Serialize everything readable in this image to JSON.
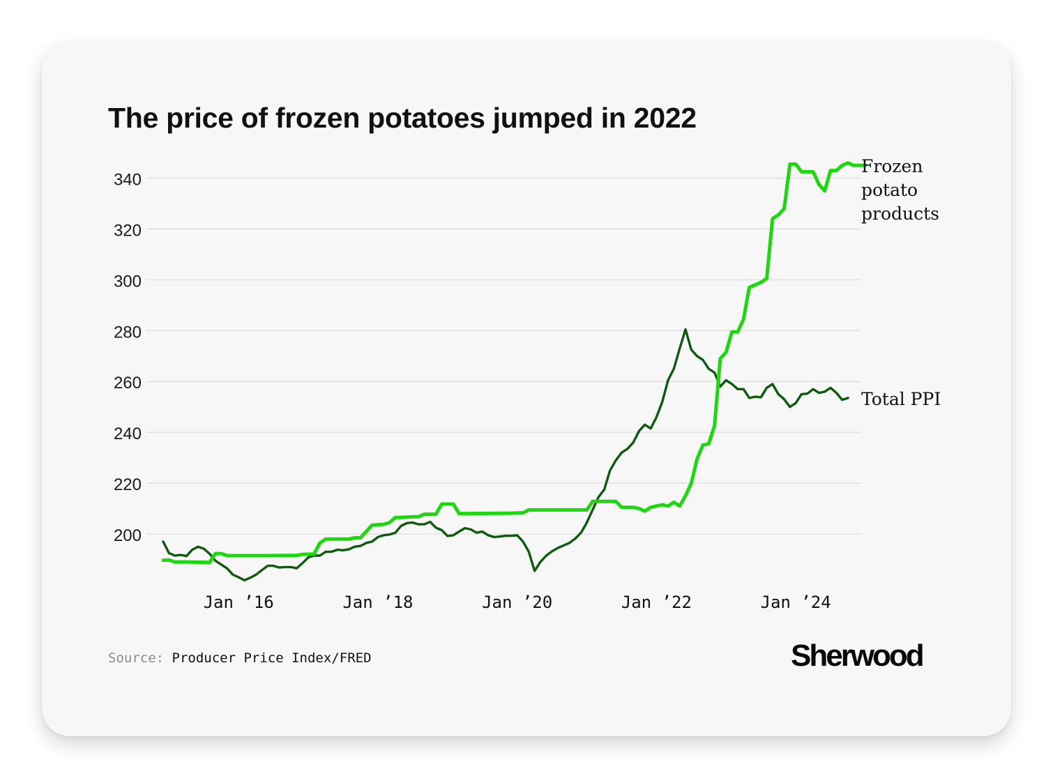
{
  "title": "The price of frozen potatoes jumped in 2022",
  "source": {
    "label": "Source:",
    "text": "Producer Price Index/FRED"
  },
  "brand": "Sherwood",
  "colors": {
    "frozen": "#1ed80e",
    "total": "#0d5a0d",
    "grid": "#e0e0e0",
    "card": "#f7f7f7"
  },
  "chart_data": {
    "type": "line",
    "title": "The price of frozen potatoes jumped in 2022",
    "xlabel": "",
    "ylabel": "",
    "ylim": [
      180,
      346
    ],
    "xlim": [
      "2014-12",
      "2024-10"
    ],
    "y_ticks": [
      200,
      220,
      240,
      260,
      280,
      300,
      320,
      340
    ],
    "y_tick_labels": [
      "200",
      "220",
      "240",
      "260",
      "280",
      "300",
      "320",
      "340"
    ],
    "x_ticks": [
      "2016-01",
      "2018-01",
      "2020-01",
      "2022-01",
      "2024-01"
    ],
    "x_tick_labels": [
      "Jan ’16",
      "Jan ’18",
      "Jan ’20",
      "Jan ’22",
      "Jan ’24"
    ],
    "grid": "horizontal",
    "series": [
      {
        "name": "Frozen potato products",
        "color": "#1ed80e",
        "label_lines": [
          "Frozen",
          "potato",
          "products"
        ],
        "points": [
          [
            "2014-12",
            189.7
          ],
          [
            "2015-01",
            189.8
          ],
          [
            "2015-02",
            189.0
          ],
          [
            "2015-04",
            189.0
          ],
          [
            "2015-08",
            188.8
          ],
          [
            "2015-09",
            192.3
          ],
          [
            "2015-10",
            192.3
          ],
          [
            "2015-11",
            191.5
          ],
          [
            "2016-06",
            191.5
          ],
          [
            "2016-11",
            191.6
          ],
          [
            "2016-12",
            192.0
          ],
          [
            "2017-02",
            192.1
          ],
          [
            "2017-03",
            196.5
          ],
          [
            "2017-04",
            198.0
          ],
          [
            "2017-08",
            198.0
          ],
          [
            "2017-09",
            198.5
          ],
          [
            "2017-10",
            198.5
          ],
          [
            "2017-11",
            201.0
          ],
          [
            "2017-12",
            203.5
          ],
          [
            "2018-02",
            203.8
          ],
          [
            "2018-03",
            204.5
          ],
          [
            "2018-04",
            206.5
          ],
          [
            "2018-05",
            206.5
          ],
          [
            "2018-07",
            206.8
          ],
          [
            "2018-08",
            206.8
          ],
          [
            "2018-09",
            207.8
          ],
          [
            "2018-11",
            207.8
          ],
          [
            "2018-12",
            211.8
          ],
          [
            "2019-02",
            211.8
          ],
          [
            "2019-03",
            208.0
          ],
          [
            "2019-12",
            208.2
          ],
          [
            "2020-01",
            208.3
          ],
          [
            "2020-02",
            208.3
          ],
          [
            "2020-03",
            209.5
          ],
          [
            "2021-01",
            209.5
          ],
          [
            "2021-02",
            212.8
          ],
          [
            "2021-06",
            212.8
          ],
          [
            "2021-07",
            210.5
          ],
          [
            "2021-09",
            210.5
          ],
          [
            "2021-10",
            210.0
          ],
          [
            "2021-11",
            209.0
          ],
          [
            "2021-12",
            210.5
          ],
          [
            "2022-02",
            211.5
          ],
          [
            "2022-03",
            211.0
          ],
          [
            "2022-04",
            212.5
          ],
          [
            "2022-05",
            211.0
          ],
          [
            "2022-06",
            215.0
          ],
          [
            "2022-07",
            220.0
          ],
          [
            "2022-08",
            229.5
          ],
          [
            "2022-09",
            235.0
          ],
          [
            "2022-10",
            235.5
          ],
          [
            "2022-11",
            242.5
          ],
          [
            "2022-12",
            269.0
          ],
          [
            "2023-01",
            271.5
          ],
          [
            "2023-02",
            279.5
          ],
          [
            "2023-03",
            279.5
          ],
          [
            "2023-04",
            284.5
          ],
          [
            "2023-05",
            297.0
          ],
          [
            "2023-06",
            298.0
          ],
          [
            "2023-07",
            299.0
          ],
          [
            "2023-08",
            300.5
          ],
          [
            "2023-09",
            324.0
          ],
          [
            "2023-10",
            325.5
          ],
          [
            "2023-11",
            328.0
          ],
          [
            "2023-12",
            345.5
          ],
          [
            "2024-01",
            345.5
          ],
          [
            "2024-02",
            342.5
          ],
          [
            "2024-04",
            342.5
          ],
          [
            "2024-05",
            337.5
          ],
          [
            "2024-06",
            335.0
          ],
          [
            "2024-07",
            343.0
          ],
          [
            "2024-08",
            343.0
          ],
          [
            "2024-09",
            345.0
          ],
          [
            "2024-10",
            346.0
          ],
          [
            "2024-11",
            345.0
          ],
          [
            "2025-01",
            345.0
          ]
        ]
      },
      {
        "name": "Total PPI",
        "color": "#0d5a0d",
        "label_lines": [
          "Total PPI"
        ],
        "points": [
          [
            "2014-12",
            197.0
          ],
          [
            "2015-01",
            192.5
          ],
          [
            "2015-02",
            191.5
          ],
          [
            "2015-03",
            191.8
          ],
          [
            "2015-04",
            191.3
          ],
          [
            "2015-05",
            193.8
          ],
          [
            "2015-06",
            195.0
          ],
          [
            "2015-07",
            194.2
          ],
          [
            "2015-08",
            192.2
          ],
          [
            "2015-09",
            189.5
          ],
          [
            "2015-10",
            188.0
          ],
          [
            "2015-11",
            186.5
          ],
          [
            "2015-12",
            184.0
          ],
          [
            "2016-01",
            183.0
          ],
          [
            "2016-02",
            181.8
          ],
          [
            "2016-03",
            182.8
          ],
          [
            "2016-04",
            184.0
          ],
          [
            "2016-05",
            185.8
          ],
          [
            "2016-06",
            187.5
          ],
          [
            "2016-07",
            187.5
          ],
          [
            "2016-08",
            186.8
          ],
          [
            "2016-09",
            187.0
          ],
          [
            "2016-10",
            187.0
          ],
          [
            "2016-11",
            186.5
          ],
          [
            "2016-12",
            188.5
          ],
          [
            "2017-01",
            190.8
          ],
          [
            "2017-02",
            191.5
          ],
          [
            "2017-03",
            191.5
          ],
          [
            "2017-04",
            193.0
          ],
          [
            "2017-05",
            193.0
          ],
          [
            "2017-06",
            193.8
          ],
          [
            "2017-07",
            193.6
          ],
          [
            "2017-08",
            194.0
          ],
          [
            "2017-09",
            195.0
          ],
          [
            "2017-10",
            195.3
          ],
          [
            "2017-11",
            196.5
          ],
          [
            "2017-12",
            197.0
          ],
          [
            "2018-01",
            198.8
          ],
          [
            "2018-02",
            199.5
          ],
          [
            "2018-03",
            199.8
          ],
          [
            "2018-04",
            200.5
          ],
          [
            "2018-05",
            203.2
          ],
          [
            "2018-06",
            204.3
          ],
          [
            "2018-07",
            204.5
          ],
          [
            "2018-08",
            203.8
          ],
          [
            "2018-09",
            203.8
          ],
          [
            "2018-10",
            204.8
          ],
          [
            "2018-11",
            202.5
          ],
          [
            "2018-12",
            201.5
          ],
          [
            "2019-01",
            199.2
          ],
          [
            "2019-02",
            199.5
          ],
          [
            "2019-03",
            201.0
          ],
          [
            "2019-04",
            202.3
          ],
          [
            "2019-05",
            201.8
          ],
          [
            "2019-06",
            200.5
          ],
          [
            "2019-07",
            201.0
          ],
          [
            "2019-08",
            199.5
          ],
          [
            "2019-09",
            198.8
          ],
          [
            "2019-10",
            199.0
          ],
          [
            "2019-11",
            199.3
          ],
          [
            "2019-12",
            199.3
          ],
          [
            "2020-01",
            199.5
          ],
          [
            "2020-02",
            197.0
          ],
          [
            "2020-03",
            193.0
          ],
          [
            "2020-04",
            185.5
          ],
          [
            "2020-05",
            189.0
          ],
          [
            "2020-06",
            191.5
          ],
          [
            "2020-07",
            193.2
          ],
          [
            "2020-08",
            194.5
          ],
          [
            "2020-09",
            195.5
          ],
          [
            "2020-10",
            196.5
          ],
          [
            "2020-11",
            198.2
          ],
          [
            "2020-12",
            200.5
          ],
          [
            "2021-01",
            204.5
          ],
          [
            "2021-02",
            209.5
          ],
          [
            "2021-03",
            214.5
          ],
          [
            "2021-04",
            217.5
          ],
          [
            "2021-05",
            225.0
          ],
          [
            "2021-06",
            229.0
          ],
          [
            "2021-07",
            232.0
          ],
          [
            "2021-08",
            233.5
          ],
          [
            "2021-09",
            236.0
          ],
          [
            "2021-10",
            240.5
          ],
          [
            "2021-11",
            243.0
          ],
          [
            "2021-12",
            241.5
          ],
          [
            "2022-01",
            246.0
          ],
          [
            "2022-02",
            252.0
          ],
          [
            "2022-03",
            260.5
          ],
          [
            "2022-04",
            265.0
          ],
          [
            "2022-05",
            273.0
          ],
          [
            "2022-06",
            280.5
          ],
          [
            "2022-07",
            272.5
          ],
          [
            "2022-08",
            270.0
          ],
          [
            "2022-09",
            268.5
          ],
          [
            "2022-10",
            265.0
          ],
          [
            "2022-11",
            263.5
          ],
          [
            "2022-12",
            258.0
          ],
          [
            "2023-01",
            260.5
          ],
          [
            "2023-02",
            259.0
          ],
          [
            "2023-03",
            257.0
          ],
          [
            "2023-04",
            257.0
          ],
          [
            "2023-05",
            253.5
          ],
          [
            "2023-06",
            254.0
          ],
          [
            "2023-07",
            253.8
          ],
          [
            "2023-08",
            257.5
          ],
          [
            "2023-09",
            259.0
          ],
          [
            "2023-10",
            255.0
          ],
          [
            "2023-11",
            253.0
          ],
          [
            "2023-12",
            250.0
          ],
          [
            "2024-01",
            251.5
          ],
          [
            "2024-02",
            255.0
          ],
          [
            "2024-03",
            255.2
          ],
          [
            "2024-04",
            257.0
          ],
          [
            "2024-05",
            255.5
          ],
          [
            "2024-06",
            256.0
          ],
          [
            "2024-07",
            257.5
          ],
          [
            "2024-08",
            255.5
          ],
          [
            "2024-09",
            252.8
          ],
          [
            "2024-10",
            253.5
          ]
        ]
      }
    ]
  }
}
